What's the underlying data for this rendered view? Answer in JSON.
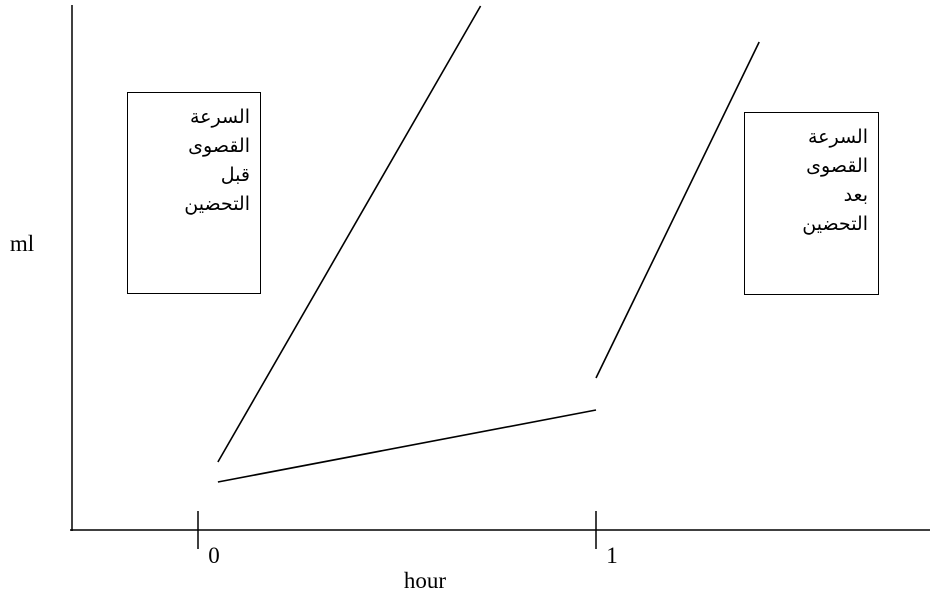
{
  "chart_data": {
    "type": "line",
    "title": "",
    "xlabel": "hour",
    "ylabel": "ml",
    "x_ticks": [
      {
        "value": 0,
        "label": "0"
      },
      {
        "value": 1,
        "label": "1"
      }
    ],
    "series": [
      {
        "points": [
          [
            0.05,
            0.17
          ],
          [
            0.71,
            1.31
          ]
        ]
      },
      {
        "points": [
          [
            0.05,
            0.12
          ],
          [
            1.0,
            0.3
          ]
        ]
      },
      {
        "points": [
          [
            1.0,
            0.38
          ],
          [
            1.41,
            1.22
          ]
        ]
      }
    ],
    "annotations": [
      {
        "lines": [
          "السرعة",
          "القصوى",
          "قبل",
          "التحضين"
        ]
      },
      {
        "lines": [
          "السرعة",
          "القصوى",
          "بعد",
          "التحضين"
        ]
      }
    ],
    "grid": false,
    "colors": {
      "axis": "#000000",
      "lines": "#000000"
    }
  }
}
